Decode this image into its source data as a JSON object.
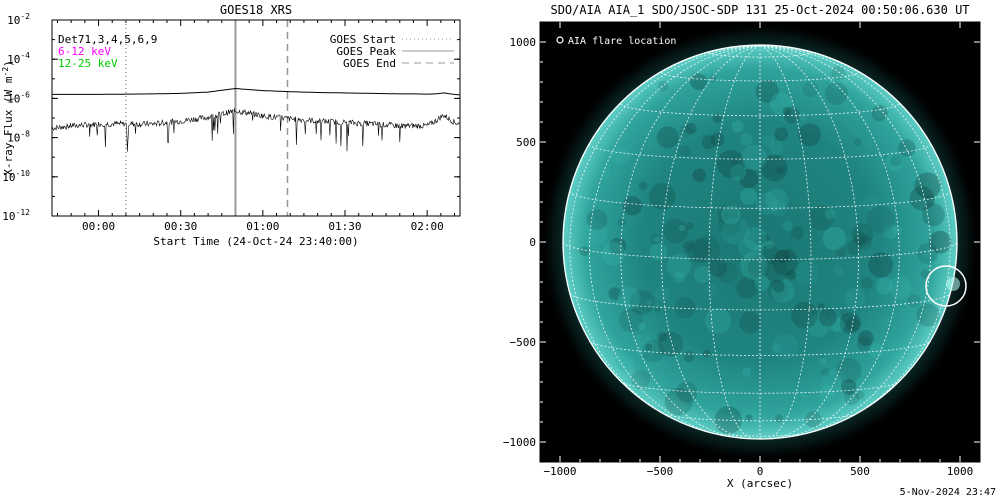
{
  "footer_timestamp": "5-Nov-2024 23:47",
  "chart_data": [
    {
      "type": "line",
      "title": "GOES18 XRS",
      "xlabel": "Start Time (24-Oct-24 23:40:00)",
      "ylabel": "X-ray Flux (W m^-2)",
      "ylabel_base": "X-ray Flux (W m",
      "ylabel_exp": "-2",
      "ylabel_end": ")",
      "y_scale": "log",
      "ylim": [
        1e-12,
        0.01
      ],
      "xlim_minutes": [
        -17,
        132
      ],
      "x_ticks": [
        {
          "minutes": 0,
          "label": "00:00"
        },
        {
          "minutes": 30,
          "label": "00:30"
        },
        {
          "minutes": 60,
          "label": "01:00"
        },
        {
          "minutes": 90,
          "label": "01:30"
        },
        {
          "minutes": 120,
          "label": "02:00"
        }
      ],
      "y_ticks": [
        {
          "exp": -2,
          "base": "10",
          "sup": "-2"
        },
        {
          "exp": -4,
          "base": "10",
          "sup": "-4"
        },
        {
          "exp": -6,
          "base": "10",
          "sup": "-6"
        },
        {
          "exp": -8,
          "base": "10",
          "sup": "-8"
        },
        {
          "exp": -10,
          "base": "10",
          "sup": "-10"
        },
        {
          "exp": -12,
          "base": "10",
          "sup": "-12"
        }
      ],
      "detector_label": "Det71,3,4,5,6,9",
      "series": [
        {
          "name": "6-12 keV",
          "color": "#ff00ff",
          "x": [
            -17,
            -10,
            0,
            10,
            20,
            30,
            40,
            45,
            50,
            55,
            60,
            70,
            80,
            90,
            100,
            110,
            115,
            120,
            123,
            126,
            130,
            132
          ],
          "y": [
            1.6e-06,
            1.6e-06,
            1.6e-06,
            1.65e-06,
            1.7e-06,
            1.8e-06,
            2.1e-06,
            2.6e-06,
            3.2e-06,
            2.8e-06,
            2.5e-06,
            2.2e-06,
            2e-06,
            1.9e-06,
            1.8e-06,
            1.7e-06,
            1.7e-06,
            1.65e-06,
            1.7e-06,
            1.9e-06,
            1.6e-06,
            1.5e-06
          ]
        },
        {
          "name": "12-25 keV",
          "color": "#00cc00",
          "x": [
            -17,
            -10,
            0,
            10,
            20,
            30,
            40,
            45,
            50,
            55,
            60,
            70,
            80,
            90,
            100,
            110,
            115,
            120,
            123,
            126,
            130,
            132
          ],
          "y": [
            3e-08,
            4e-08,
            5e-08,
            5e-08,
            5e-08,
            7e-08,
            1.1e-07,
            1.6e-07,
            2.3e-07,
            1.8e-07,
            1.3e-07,
            9e-08,
            7e-08,
            6e-08,
            5e-08,
            4e-08,
            4e-08,
            4e-08,
            7e-08,
            1.4e-07,
            6e-08,
            5e-08
          ]
        }
      ],
      "event_lines": [
        {
          "name": "GOES Start",
          "minutes": 10,
          "style": "dotted",
          "color": "#999999"
        },
        {
          "name": "GOES Peak",
          "minutes": 50,
          "style": "solid",
          "color": "#999999"
        },
        {
          "name": "GOES End",
          "minutes": 69,
          "style": "dashed",
          "color": "#999999"
        }
      ]
    },
    {
      "type": "image",
      "title": "SDO/AIA AIA_1 SDO/JSOC-SDP 131 25-Oct-2024 00:50:06.630 UT",
      "xlabel": "X (arcsec)",
      "xlim": [
        -1100,
        1100
      ],
      "ylim": [
        -1100,
        1100
      ],
      "x_ticks": [
        -1000,
        -500,
        0,
        500,
        1000
      ],
      "y_ticks": [
        1000,
        500,
        0,
        -500,
        -1000
      ],
      "x_tick_labels": [
        "−1000",
        "−500",
        "0",
        "500",
        "1000"
      ],
      "y_tick_labels": [
        "1000",
        "500",
        "0",
        "−500",
        "−1000"
      ],
      "solar_radius_arcsec": 985,
      "colormap": [
        "#000000",
        "#0e3c3a",
        "#1b7773",
        "#38b6ae",
        "#8ff0e8"
      ],
      "legend": "AIA flare location",
      "flare_location": {
        "x": 930,
        "y": -220,
        "radius_arcsec": 100
      }
    }
  ]
}
